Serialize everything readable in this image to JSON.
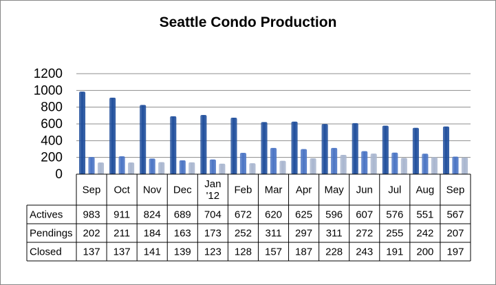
{
  "chart_data": {
    "type": "bar",
    "title": "Seattle Condo Production",
    "categories": [
      "Sep",
      "Oct",
      "Nov",
      "Dec",
      "Jan '12",
      "Feb",
      "Mar",
      "Apr",
      "May",
      "Jun",
      "Jul",
      "Aug",
      "Sep"
    ],
    "category_lines": [
      [
        "Sep"
      ],
      [
        "Oct"
      ],
      [
        "Nov"
      ],
      [
        "Dec"
      ],
      [
        "Jan",
        "'12"
      ],
      [
        "Feb"
      ],
      [
        "Mar"
      ],
      [
        "Apr"
      ],
      [
        "May"
      ],
      [
        "Jun"
      ],
      [
        "Jul"
      ],
      [
        "Aug"
      ],
      [
        "Sep"
      ]
    ],
    "series": [
      {
        "name": "Actives",
        "color": "#1f4e9c",
        "values": [
          983,
          911,
          824,
          689,
          704,
          672,
          620,
          625,
          596,
          607,
          576,
          551,
          567
        ]
      },
      {
        "name": "Pendings",
        "color": "#4a74c4",
        "values": [
          202,
          211,
          184,
          163,
          173,
          252,
          311,
          297,
          311,
          272,
          255,
          242,
          207
        ]
      },
      {
        "name": "Closed",
        "color": "#a9b6cf",
        "values": [
          137,
          137,
          141,
          139,
          123,
          128,
          157,
          187,
          228,
          243,
          191,
          200,
          197
        ]
      }
    ],
    "y_ticks": [
      0,
      200,
      400,
      600,
      800,
      1000,
      1200
    ],
    "ylim": [
      0,
      1200
    ],
    "grid": true,
    "legend": "data table below chart"
  }
}
